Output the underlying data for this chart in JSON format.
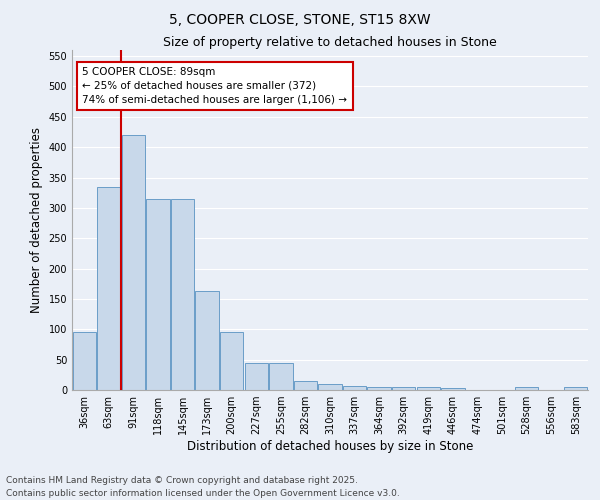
{
  "title": "5, COOPER CLOSE, STONE, ST15 8XW",
  "subtitle": "Size of property relative to detached houses in Stone",
  "xlabel": "Distribution of detached houses by size in Stone",
  "ylabel": "Number of detached properties",
  "categories": [
    "36sqm",
    "63sqm",
    "91sqm",
    "118sqm",
    "145sqm",
    "173sqm",
    "200sqm",
    "227sqm",
    "255sqm",
    "282sqm",
    "310sqm",
    "337sqm",
    "364sqm",
    "392sqm",
    "419sqm",
    "446sqm",
    "474sqm",
    "501sqm",
    "528sqm",
    "556sqm",
    "583sqm"
  ],
  "values": [
    95,
    335,
    420,
    315,
    315,
    163,
    95,
    45,
    45,
    15,
    10,
    7,
    5,
    5,
    5,
    3,
    0,
    0,
    5,
    0,
    5
  ],
  "bar_color": "#c8d8ea",
  "bar_edge_color": "#6a9dc8",
  "red_line_index": 2,
  "red_line_color": "#cc0000",
  "annotation_text": "5 COOPER CLOSE: 89sqm\n← 25% of detached houses are smaller (372)\n74% of semi-detached houses are larger (1,106) →",
  "annotation_box_edge_color": "#cc0000",
  "annotation_box_face_color": "#ffffff",
  "ylim": [
    0,
    560
  ],
  "yticks": [
    0,
    50,
    100,
    150,
    200,
    250,
    300,
    350,
    400,
    450,
    500,
    550
  ],
  "footer_line1": "Contains HM Land Registry data © Crown copyright and database right 2025.",
  "footer_line2": "Contains public sector information licensed under the Open Government Licence v3.0.",
  "background_color": "#eaeff7",
  "plot_bg_color": "#eaeff7",
  "title_fontsize": 10,
  "subtitle_fontsize": 9,
  "axis_label_fontsize": 8.5,
  "tick_fontsize": 7,
  "annotation_fontsize": 7.5,
  "footer_fontsize": 6.5,
  "grid_color": "#ffffff",
  "spine_color": "#aaaaaa"
}
